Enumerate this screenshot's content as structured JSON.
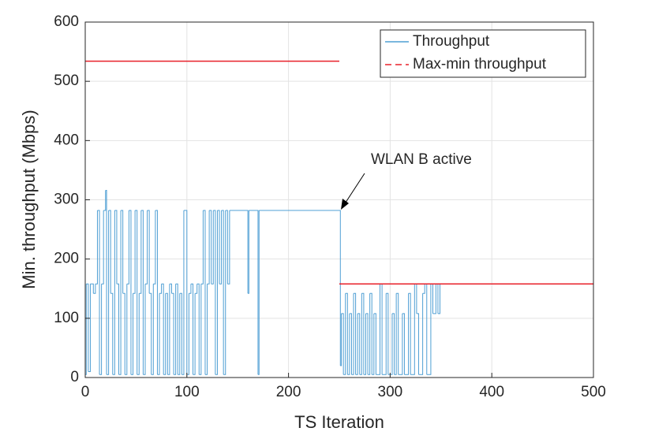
{
  "chart_data": {
    "type": "line",
    "xlabel": "TS Iteration",
    "ylabel": "Min. throughput (Mbps)",
    "annotation": "WLAN B active",
    "xlim": [
      0,
      500
    ],
    "xticks": [
      0,
      100,
      200,
      300,
      400,
      500
    ],
    "ylim": [
      0,
      600
    ],
    "yticks": [
      0,
      100,
      200,
      300,
      400,
      500,
      600
    ],
    "grid": true,
    "legend": "upper right",
    "series": [
      {
        "name": "Throughput",
        "color": "#4f9fd4",
        "style": "steps",
        "x": [
          0,
          1,
          3,
          5,
          8,
          10,
          12,
          14,
          16,
          18,
          20,
          21,
          23,
          25,
          27,
          29,
          31,
          33,
          35,
          37,
          39,
          41,
          43,
          45,
          47,
          49,
          51,
          53,
          55,
          57,
          59,
          61,
          63,
          65,
          67,
          69,
          71,
          73,
          75,
          77,
          79,
          81,
          83,
          85,
          87,
          89,
          91,
          93,
          95,
          97,
          100,
          102,
          104,
          106,
          108,
          110,
          112,
          114,
          116,
          118,
          120,
          122,
          124,
          126,
          128,
          130,
          132,
          134,
          136,
          138,
          140,
          142,
          160,
          161,
          170,
          171,
          250,
          251,
          252,
          254,
          256,
          258,
          260,
          262,
          264,
          266,
          268,
          270,
          272,
          274,
          276,
          278,
          280,
          282,
          284,
          286,
          290,
          292,
          296,
          298,
          302,
          304,
          306,
          308,
          312,
          314,
          318,
          320,
          324,
          326,
          328,
          332,
          334,
          336,
          340,
          342,
          345,
          347,
          349,
          350
        ],
        "values": [
          5,
          158,
          10,
          158,
          142,
          158,
          282,
          5,
          158,
          282,
          316,
          5,
          282,
          142,
          5,
          282,
          158,
          5,
          282,
          142,
          5,
          158,
          282,
          5,
          142,
          282,
          5,
          142,
          282,
          5,
          158,
          282,
          142,
          5,
          158,
          282,
          5,
          142,
          158,
          5,
          142,
          5,
          158,
          142,
          5,
          158,
          5,
          142,
          5,
          282,
          5,
          142,
          158,
          5,
          142,
          158,
          5,
          158,
          282,
          5,
          158,
          282,
          158,
          282,
          5,
          282,
          158,
          282,
          5,
          282,
          158,
          282,
          142,
          282,
          5,
          282,
          282,
          20,
          108,
          5,
          142,
          5,
          108,
          5,
          142,
          5,
          108,
          5,
          142,
          5,
          108,
          5,
          142,
          5,
          108,
          5,
          158,
          5,
          142,
          5,
          108,
          5,
          142,
          5,
          108,
          5,
          142,
          5,
          158,
          108,
          5,
          142,
          158,
          5,
          158,
          108,
          158,
          108,
          158,
          158
        ]
      },
      {
        "name": "Max-min throughput",
        "color": "#e8202a",
        "style": "line",
        "x": [
          0,
          250,
          250,
          250,
          500
        ],
        "values": [
          534,
          534,
          null,
          158,
          158
        ]
      }
    ]
  }
}
